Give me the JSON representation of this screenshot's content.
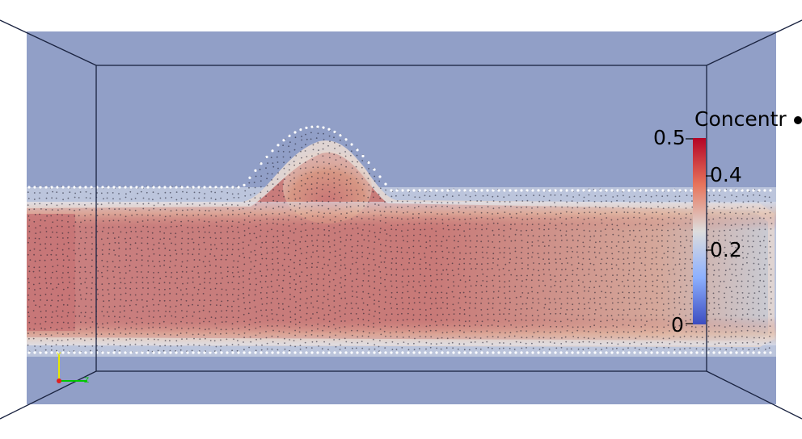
{
  "legend": {
    "title": "Concentr",
    "ticks": {
      "max": "0.5",
      "mid_high": "0.4",
      "mid_low": "0.2",
      "min": "0"
    },
    "colors": {
      "high": "#b40426",
      "mid": "#dddddd",
      "low": "#3b4cc0"
    }
  },
  "axes_triad": {
    "y": "Y",
    "z": "Z"
  },
  "colors": {
    "background": "#ffffff",
    "box_fill": "#919fc7",
    "plume_core": "#c87070",
    "edge": "#1a2340"
  }
}
